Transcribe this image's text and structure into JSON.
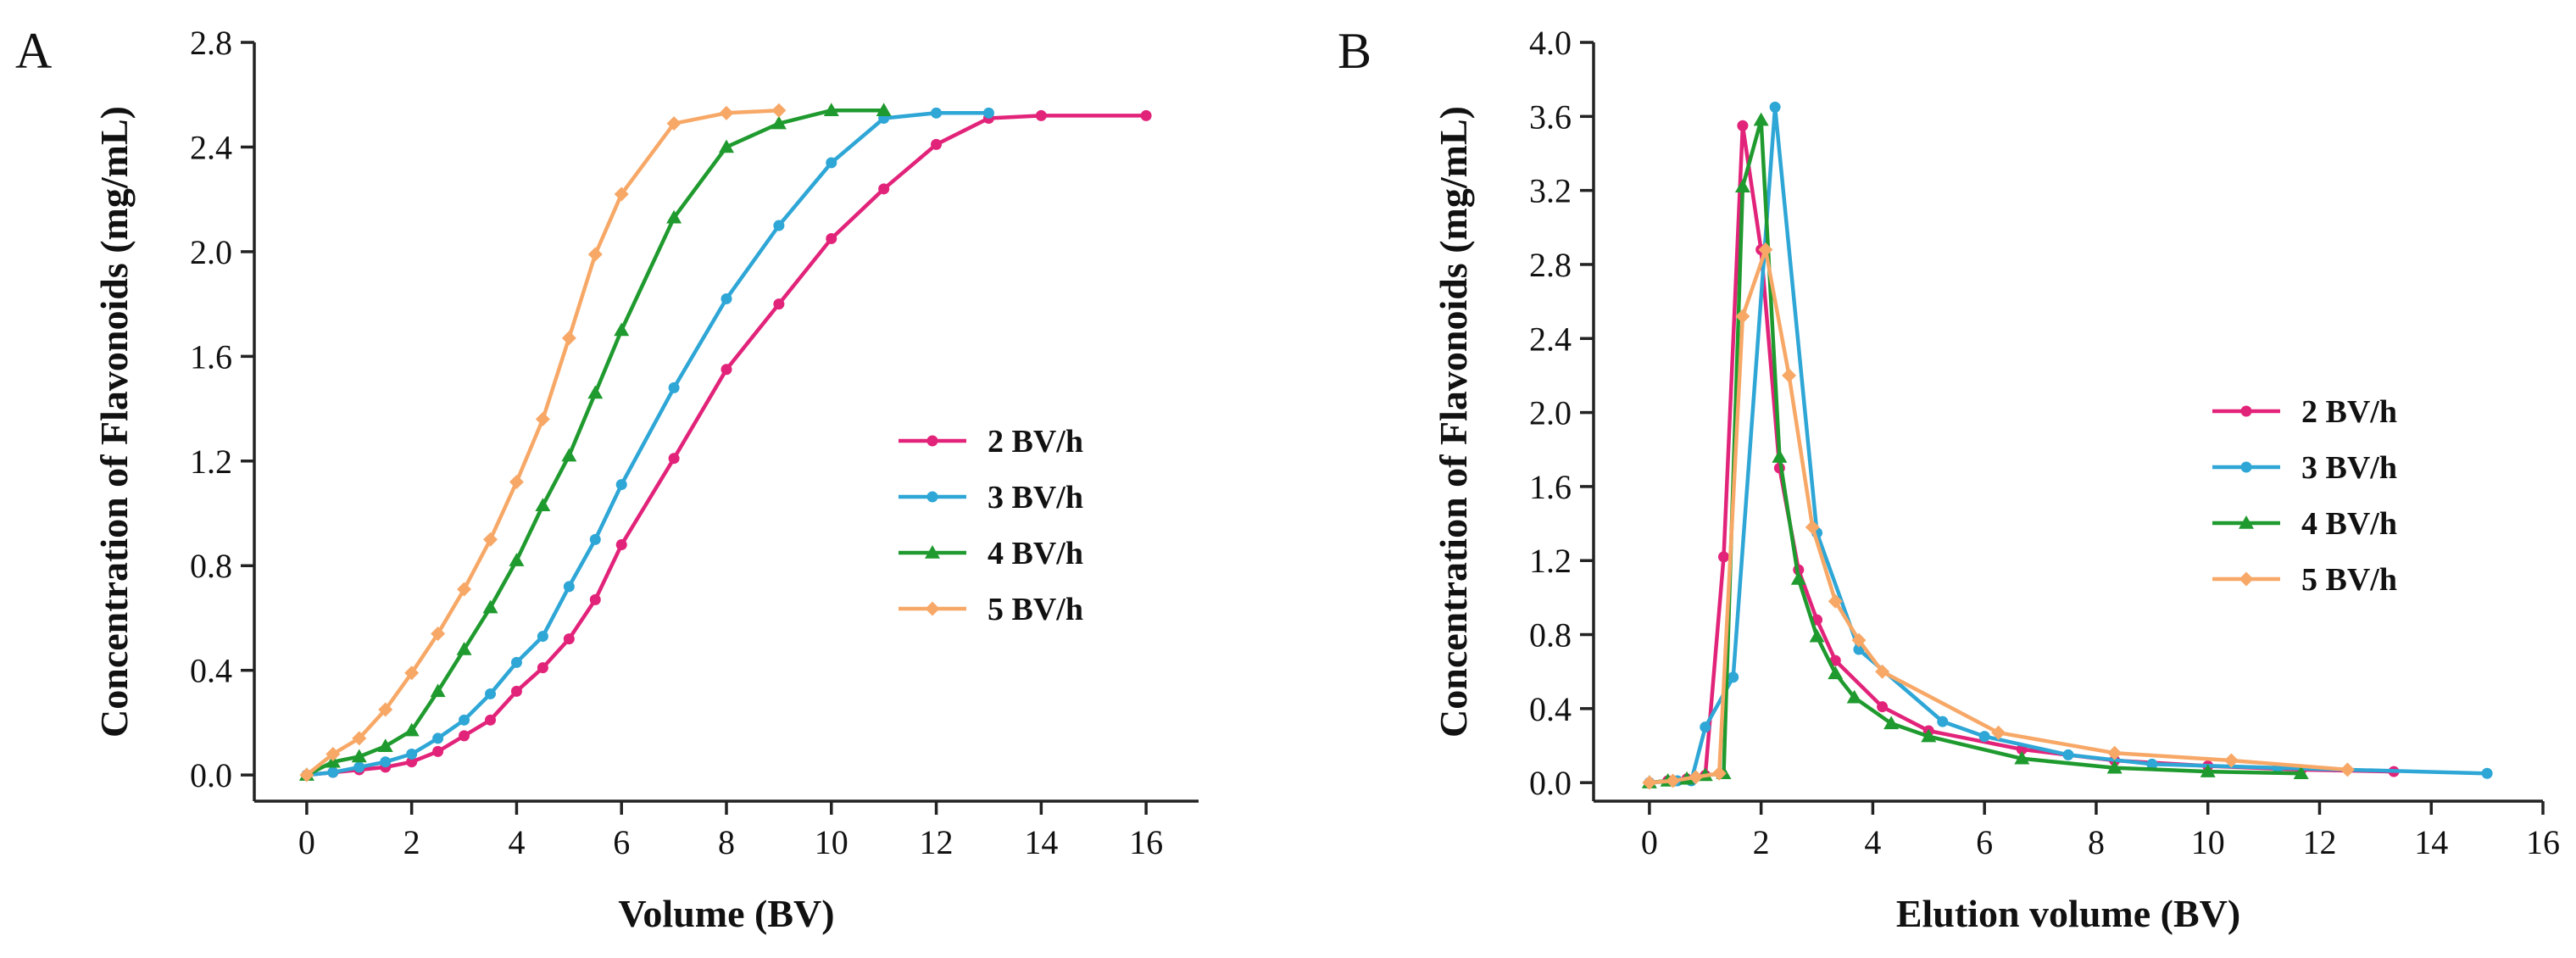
{
  "chart_data": [
    {
      "type": "line",
      "panel_label": "A",
      "xlabel": "Volume (BV)",
      "ylabel": "Concentration of Flavonoids (mg/mL)",
      "xlim": [
        -1,
        17
      ],
      "ylim": [
        -0.1,
        2.8
      ],
      "xticks": [
        0,
        2,
        4,
        6,
        8,
        10,
        12,
        14,
        16
      ],
      "yticks": [
        0.0,
        0.4,
        0.8,
        1.2,
        1.6,
        2.0,
        2.4,
        2.8
      ],
      "xtick_labels": [
        "0",
        "2",
        "4",
        "6",
        "8",
        "10",
        "12",
        "14",
        "16"
      ],
      "ytick_labels": [
        "0.0",
        "0.4",
        "0.8",
        "1.2",
        "1.6",
        "2.0",
        "2.4",
        "2.8"
      ],
      "legend_position": "center-right",
      "series": [
        {
          "name": "2 BV/h",
          "color": "#E2237A",
          "marker": "circle",
          "x": [
            0,
            0.5,
            1,
            1.5,
            2,
            2.5,
            3,
            3.5,
            4,
            4.5,
            5,
            5.5,
            6,
            7,
            8,
            9,
            10,
            11,
            12,
            13,
            14,
            16
          ],
          "y": [
            0,
            0.01,
            0.02,
            0.03,
            0.05,
            0.09,
            0.15,
            0.21,
            0.32,
            0.41,
            0.52,
            0.67,
            0.88,
            1.21,
            1.55,
            1.8,
            2.05,
            2.24,
            2.41,
            2.51,
            2.52,
            2.52
          ]
        },
        {
          "name": "3 BV/h",
          "color": "#2EA6D6",
          "marker": "circle",
          "x": [
            0,
            0.5,
            1,
            1.5,
            2,
            2.5,
            3,
            3.5,
            4,
            4.5,
            5,
            5.5,
            6,
            7,
            8,
            9,
            10,
            11,
            12,
            13
          ],
          "y": [
            0,
            0.01,
            0.03,
            0.05,
            0.08,
            0.14,
            0.21,
            0.31,
            0.43,
            0.53,
            0.72,
            0.9,
            1.11,
            1.48,
            1.82,
            2.1,
            2.34,
            2.51,
            2.53,
            2.53
          ]
        },
        {
          "name": "4 BV/h",
          "color": "#1F9A2E",
          "marker": "triangle",
          "x": [
            0,
            0.5,
            1,
            1.5,
            2,
            2.5,
            3,
            3.5,
            4,
            4.5,
            5,
            5.5,
            6,
            7,
            8,
            9,
            10,
            11
          ],
          "y": [
            0,
            0.05,
            0.07,
            0.11,
            0.17,
            0.32,
            0.48,
            0.64,
            0.82,
            1.03,
            1.22,
            1.46,
            1.7,
            2.13,
            2.4,
            2.49,
            2.54,
            2.54
          ]
        },
        {
          "name": "5 BV/h",
          "color": "#F7A867",
          "marker": "diamond",
          "x": [
            0,
            0.5,
            1,
            1.5,
            2,
            2.5,
            3,
            3.5,
            4,
            4.5,
            5,
            5.5,
            6,
            7,
            8,
            9
          ],
          "y": [
            0,
            0.08,
            0.14,
            0.25,
            0.39,
            0.54,
            0.71,
            0.9,
            1.12,
            1.36,
            1.67,
            1.99,
            2.22,
            2.49,
            2.53,
            2.54
          ]
        }
      ]
    },
    {
      "type": "line",
      "panel_label": "B",
      "xlabel": "Elution volume (BV)",
      "ylabel": "Concentration of Flavonoids (mg/mL)",
      "xlim": [
        -1,
        16
      ],
      "ylim": [
        -0.1,
        4.0
      ],
      "xticks": [
        0,
        2,
        4,
        6,
        8,
        10,
        12,
        14,
        16
      ],
      "yticks": [
        0.0,
        0.4,
        0.8,
        1.2,
        1.6,
        2.0,
        2.4,
        2.8,
        3.2,
        3.6,
        4.0
      ],
      "xtick_labels": [
        "0",
        "2",
        "4",
        "6",
        "8",
        "10",
        "12",
        "14",
        "16"
      ],
      "ytick_labels": [
        "0.0",
        "0.4",
        "0.8",
        "1.2",
        "1.6",
        "2.0",
        "2.4",
        "2.8",
        "3.2",
        "3.6",
        "4.0"
      ],
      "legend_position": "center-right",
      "series": [
        {
          "name": "2 BV/h",
          "color": "#E2237A",
          "marker": "circle",
          "x": [
            0,
            0.33,
            0.67,
            1.0,
            1.33,
            1.67,
            2.0,
            2.33,
            2.67,
            3.0,
            3.33,
            4.17,
            5.0,
            6.67,
            8.33,
            10.0,
            11.67,
            13.33
          ],
          "y": [
            0,
            0.01,
            0.02,
            0.04,
            1.22,
            3.55,
            2.88,
            1.7,
            1.15,
            0.88,
            0.66,
            0.41,
            0.28,
            0.18,
            0.12,
            0.09,
            0.07,
            0.06
          ]
        },
        {
          "name": "3 BV/h",
          "color": "#2EA6D6",
          "marker": "circle",
          "x": [
            0,
            0.5,
            0.75,
            1.0,
            1.5,
            2.25,
            3.0,
            3.75,
            5.25,
            6.0,
            7.5,
            9.0,
            11.25,
            15.0
          ],
          "y": [
            0,
            0.01,
            0.01,
            0.3,
            0.57,
            3.65,
            1.35,
            0.72,
            0.33,
            0.25,
            0.15,
            0.1,
            0.08,
            0.05
          ]
        },
        {
          "name": "4 BV/h",
          "color": "#1F9A2E",
          "marker": "triangle",
          "x": [
            0,
            0.33,
            0.67,
            1.0,
            1.33,
            1.67,
            2.0,
            2.33,
            2.67,
            3.0,
            3.33,
            3.67,
            4.33,
            5.0,
            6.67,
            8.33,
            10.0,
            11.67
          ],
          "y": [
            0,
            0.01,
            0.02,
            0.04,
            0.05,
            3.22,
            3.58,
            1.76,
            1.1,
            0.79,
            0.59,
            0.46,
            0.32,
            0.25,
            0.13,
            0.08,
            0.06,
            0.05
          ]
        },
        {
          "name": "5 BV/h",
          "color": "#F7A867",
          "marker": "diamond",
          "x": [
            0,
            0.42,
            0.83,
            1.25,
            1.67,
            2.08,
            2.5,
            2.92,
            3.33,
            3.75,
            4.17,
            6.25,
            8.33,
            10.42,
            12.5
          ],
          "y": [
            0,
            0.01,
            0.03,
            0.05,
            2.52,
            2.88,
            2.2,
            1.38,
            0.98,
            0.77,
            0.6,
            0.27,
            0.16,
            0.12,
            0.07
          ]
        }
      ]
    }
  ]
}
